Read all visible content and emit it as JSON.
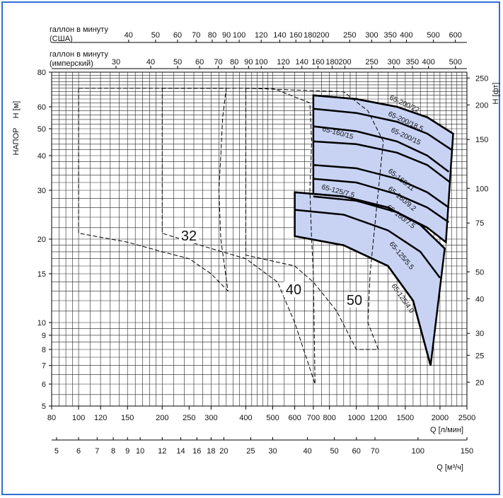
{
  "chart_data": {
    "type": "line",
    "title": "",
    "y_axis_left": {
      "label_top": "H [м]",
      "label_side": "НАПОР",
      "scale": "log",
      "ylim": [
        5,
        80
      ],
      "ticks": [
        "5",
        "6",
        "7",
        "8",
        "9",
        "10",
        "15",
        "20",
        "30",
        "40",
        "50",
        "60",
        "80"
      ],
      "tick_values": [
        5,
        6,
        7,
        8,
        9,
        10,
        15,
        20,
        30,
        40,
        50,
        60,
        80
      ]
    },
    "y_axis_right": {
      "label": "H [фт]",
      "scale": "log",
      "ticks": [
        "20",
        "25",
        "30",
        "40",
        "50",
        "75",
        "100",
        "150",
        "200",
        "250"
      ],
      "tick_values": [
        20,
        25,
        30,
        40,
        50,
        75,
        100,
        150,
        200,
        250
      ]
    },
    "x_axis_lpm": {
      "label": "Q [л/мин]",
      "scale": "log",
      "xlim": [
        80,
        2500
      ],
      "ticks": [
        "80",
        "100",
        "120",
        "150",
        "200",
        "250",
        "300",
        "400",
        "500",
        "600",
        "700",
        "800",
        "1000",
        "1200",
        "1500",
        "2000",
        "2500"
      ],
      "tick_values": [
        80,
        100,
        120,
        150,
        200,
        250,
        300,
        400,
        500,
        600,
        700,
        800,
        1000,
        1200,
        1500,
        2000,
        2500
      ]
    },
    "x_axis_m3h": {
      "label": "Q [м³/ч]",
      "ticks": [
        "5",
        "6",
        "7",
        "8",
        "9",
        "10",
        "12",
        "14",
        "16",
        "18",
        "20",
        "25",
        "30",
        "40",
        "50",
        "60",
        "70",
        "100",
        "150"
      ],
      "tick_values": [
        5,
        6,
        7,
        8,
        9,
        10,
        12,
        14,
        16,
        18,
        20,
        25,
        30,
        40,
        50,
        60,
        70,
        100,
        150
      ]
    },
    "x_axis_usgpm": {
      "label_line1": "галлон в минуту",
      "label_line2": "(США)",
      "ticks": [
        "40",
        "50",
        "60",
        "70",
        "80",
        "90",
        "100",
        "120",
        "140",
        "160",
        "180",
        "200",
        "250",
        "300",
        "350",
        "400",
        "500",
        "600"
      ],
      "tick_values": [
        40,
        50,
        60,
        70,
        80,
        90,
        100,
        120,
        140,
        160,
        180,
        200,
        250,
        300,
        350,
        400,
        500,
        600
      ]
    },
    "x_axis_impgpm": {
      "label_line1": "галлон в минуту",
      "label_line2": "(имперский)",
      "ticks": [
        "30",
        "40",
        "50",
        "60",
        "70",
        "80",
        "90",
        "100",
        "120",
        "140",
        "160",
        "180",
        "200",
        "250",
        "300",
        "350",
        "400",
        "500"
      ],
      "tick_values": [
        30,
        40,
        50,
        60,
        70,
        80,
        90,
        100,
        120,
        140,
        160,
        180,
        200,
        250,
        300,
        350,
        400,
        500
      ]
    },
    "size_fields": [
      {
        "name": "32",
        "outline": [
          [
            100,
            70
          ],
          [
            340,
            70
          ],
          [
            330,
            55
          ],
          [
            325,
            40
          ],
          [
            320,
            30
          ],
          [
            325,
            20
          ],
          [
            345,
            13
          ],
          [
            300,
            15
          ],
          [
            250,
            17
          ],
          [
            200,
            18
          ],
          [
            150,
            19.5
          ],
          [
            100,
            21
          ]
        ]
      },
      {
        "name": "40",
        "outline": [
          [
            200,
            70
          ],
          [
            500,
            70
          ],
          [
            680,
            62
          ],
          [
            690,
            45
          ],
          [
            680,
            30
          ],
          [
            690,
            20
          ],
          [
            700,
            15
          ],
          [
            710,
            6
          ],
          [
            600,
            10
          ],
          [
            520,
            14
          ],
          [
            400,
            17
          ],
          [
            300,
            18.5
          ],
          [
            200,
            21
          ]
        ]
      },
      {
        "name": "50",
        "outline": [
          [
            400,
            70
          ],
          [
            900,
            68
          ],
          [
            1100,
            58
          ],
          [
            1250,
            45
          ],
          [
            1200,
            30
          ],
          [
            1120,
            15
          ],
          [
            1100,
            10
          ],
          [
            1200,
            8
          ],
          [
            1000,
            8
          ],
          [
            850,
            11
          ],
          [
            700,
            14
          ],
          [
            600,
            16
          ],
          [
            400,
            17.5
          ]
        ]
      }
    ],
    "series": [
      {
        "name": "65-200/22",
        "x": [
          700,
          1000,
          1400,
          1800,
          2230
        ],
        "y": [
          66,
          64,
          60,
          55,
          48
        ]
      },
      {
        "name": "65-200/18.5",
        "x": [
          700,
          1000,
          1400,
          1800,
          2200
        ],
        "y": [
          59,
          57,
          53,
          48,
          42
        ]
      },
      {
        "name": "65-200/15",
        "x": [
          700,
          1000,
          1400,
          1800,
          2150
        ],
        "y": [
          51,
          49,
          45,
          40,
          35
        ]
      },
      {
        "name": "65-160/15",
        "x": [
          700,
          1000,
          1400,
          1800,
          2180
        ],
        "y": [
          45,
          44,
          41,
          37,
          32
        ]
      },
      {
        "name": "65-160/11",
        "x": [
          700,
          1000,
          1400,
          1800,
          2150
        ],
        "y": [
          37,
          36,
          33,
          29.5,
          26
        ]
      },
      {
        "name": "65-160/9.2",
        "x": [
          700,
          1000,
          1400,
          1800,
          2150
        ],
        "y": [
          33,
          32,
          29,
          26,
          23
        ]
      },
      {
        "name": "65-160/7.5",
        "x": [
          700,
          1000,
          1400,
          1800,
          2100
        ],
        "y": [
          28.5,
          27.5,
          25,
          22,
          19.5
        ]
      },
      {
        "name": "65-125/7.5",
        "x": [
          600,
          900,
          1300,
          1700,
          2080
        ],
        "y": [
          29.5,
          28.5,
          26,
          22.5,
          18.5
        ]
      },
      {
        "name": "65-125/5.5",
        "x": [
          600,
          900,
          1300,
          1700,
          2000
        ],
        "y": [
          25.5,
          24.5,
          21.5,
          18,
          14.5
        ]
      },
      {
        "name": "65-125/4.0",
        "x": [
          600,
          900,
          1300,
          1600,
          1850
        ],
        "y": [
          20.5,
          19,
          16,
          12,
          7
        ]
      }
    ],
    "grid": true
  }
}
